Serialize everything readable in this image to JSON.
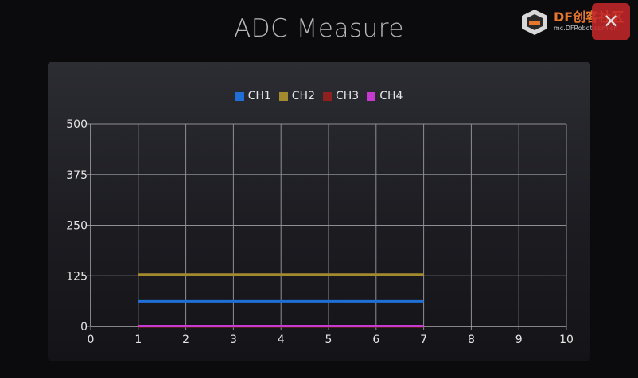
{
  "title": "ADC Measure",
  "logo": {
    "brand": "DF创客社区",
    "url": "mc.DFRobot.com.cn"
  },
  "close_glyph": "✕",
  "colors": {
    "ch1": "#1f6fd6",
    "ch2": "#a38a2e",
    "ch3": "#8e2020",
    "ch4": "#c63ad0",
    "grid": "#8e8e94"
  },
  "chart_data": {
    "type": "line",
    "title": "ADC Measure",
    "xlabel": "",
    "ylabel": "",
    "xlim": [
      0,
      10
    ],
    "ylim": [
      0,
      500
    ],
    "x_ticks": [
      "0",
      "1",
      "2",
      "3",
      "4",
      "5",
      "6",
      "7",
      "8",
      "9",
      "10"
    ],
    "y_ticks": [
      "0",
      "125",
      "250",
      "375",
      "500"
    ],
    "grid": true,
    "legend_position": "top-center",
    "x": [
      1,
      2,
      3,
      4,
      5,
      6,
      7
    ],
    "series": [
      {
        "name": "CH1",
        "color": "#1f6fd6",
        "values": [
          62,
          62,
          62,
          62,
          62,
          62,
          62
        ]
      },
      {
        "name": "CH2",
        "color": "#a38a2e",
        "values": [
          128,
          128,
          128,
          128,
          128,
          128,
          128
        ]
      },
      {
        "name": "CH3",
        "color": "#8e2020",
        "values": [
          0,
          0,
          0,
          0,
          0,
          0,
          0
        ]
      },
      {
        "name": "CH4",
        "color": "#c63ad0",
        "values": [
          1,
          1,
          1,
          1,
          1,
          1,
          1
        ]
      }
    ]
  }
}
